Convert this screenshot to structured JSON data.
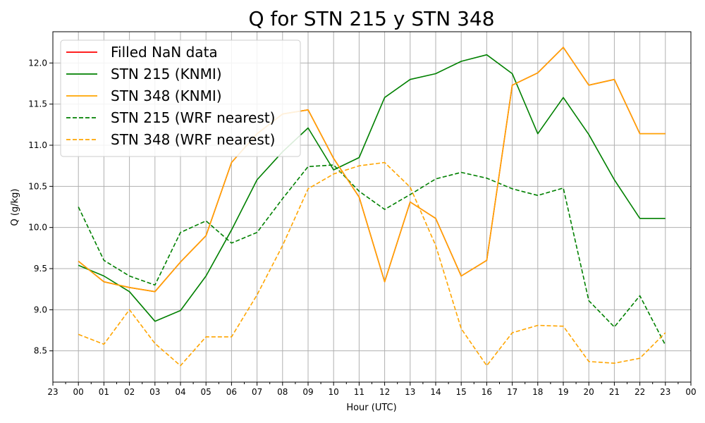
{
  "chart_data": {
    "type": "line",
    "title": "Q for STN 215 y STN 348",
    "xlabel": "Hour (UTC)",
    "ylabel": "Q (g/kg)",
    "xlim": [
      -1,
      24
    ],
    "ylim": [
      8.12,
      12.38
    ],
    "x_tick_labels": [
      "23",
      "00",
      "01",
      "02",
      "03",
      "04",
      "05",
      "06",
      "07",
      "08",
      "09",
      "10",
      "11",
      "12",
      "13",
      "14",
      "15",
      "16",
      "17",
      "18",
      "19",
      "20",
      "21",
      "22",
      "23",
      "00"
    ],
    "y_ticks": [
      8.5,
      9.0,
      9.5,
      10.0,
      10.5,
      11.0,
      11.5,
      12.0
    ],
    "y_tick_labels": [
      "8.5",
      "9.0",
      "9.5",
      "10.0",
      "10.5",
      "11.0",
      "11.5",
      "12.0"
    ],
    "grid": true,
    "legend_position": "upper-left",
    "x": [
      0,
      1,
      2,
      3,
      4,
      5,
      6,
      7,
      8,
      9,
      10,
      11,
      12,
      13,
      14,
      15,
      16,
      17,
      18,
      19,
      20,
      21,
      22,
      23
    ],
    "series": [
      {
        "name": "Filled NaN data",
        "color": "#ff0000",
        "dash": "solid",
        "values": [
          9.59,
          9.34,
          9.27,
          9.22,
          9.58,
          9.9,
          10.79,
          11.14,
          11.38,
          11.43,
          10.84,
          10.37,
          9.34,
          10.31,
          10.11,
          9.41,
          9.6,
          11.73,
          11.88,
          12.19,
          11.73,
          11.8,
          11.14,
          11.14
        ]
      },
      {
        "name": "STN 215 (KNMI)",
        "color": "#008000",
        "dash": "solid",
        "values": [
          9.54,
          9.41,
          9.22,
          8.86,
          8.99,
          9.41,
          9.97,
          10.58,
          10.92,
          11.21,
          10.7,
          10.85,
          11.58,
          11.8,
          11.87,
          12.02,
          12.1,
          11.87,
          11.14,
          11.58,
          11.13,
          10.58,
          10.11,
          10.11
        ]
      },
      {
        "name": "STN 348 (KNMI)",
        "color": "#ffa500",
        "dash": "solid",
        "values": [
          9.59,
          9.34,
          9.27,
          9.22,
          9.58,
          9.9,
          10.79,
          11.14,
          11.38,
          11.43,
          10.84,
          10.37,
          9.34,
          10.31,
          10.11,
          9.41,
          9.6,
          11.73,
          11.88,
          12.19,
          11.73,
          11.8,
          11.14,
          11.14
        ]
      },
      {
        "name": "STN 215 (WRF nearest)",
        "color": "#008000",
        "dash": "dashed",
        "values": [
          10.25,
          9.6,
          9.41,
          9.3,
          9.94,
          10.08,
          9.81,
          9.94,
          10.35,
          10.74,
          10.76,
          10.44,
          10.22,
          10.4,
          10.59,
          10.67,
          10.6,
          10.47,
          10.39,
          10.48,
          9.11,
          8.79,
          9.17,
          8.57
        ]
      },
      {
        "name": "STN 348 (WRF nearest)",
        "color": "#ffa500",
        "dash": "dashed",
        "values": [
          8.7,
          8.58,
          9.0,
          8.59,
          8.32,
          8.67,
          8.67,
          9.18,
          9.78,
          10.47,
          10.65,
          10.75,
          10.79,
          10.49,
          9.78,
          8.77,
          8.32,
          8.72,
          8.81,
          8.8,
          8.37,
          8.35,
          8.41,
          8.72
        ]
      }
    ]
  }
}
